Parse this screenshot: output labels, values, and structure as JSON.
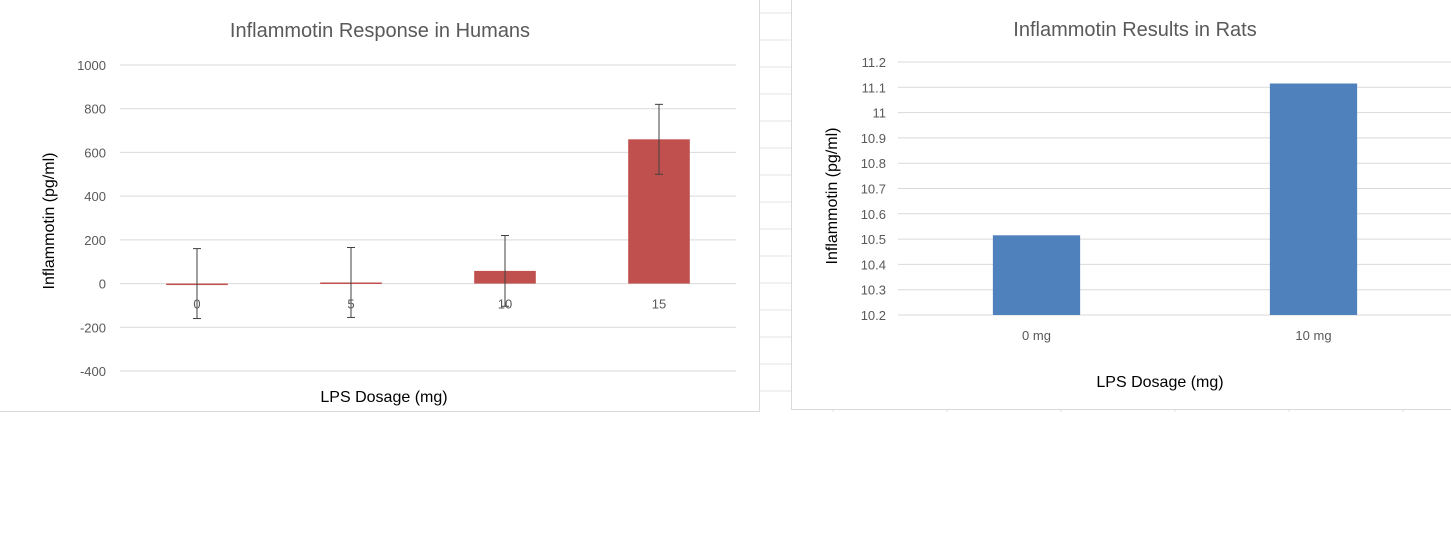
{
  "colors": {
    "humans_bar": "#c0504d",
    "rats_bar": "#4f81bd",
    "gridline": "#d9d9d9",
    "text": "#595959"
  },
  "chart_data": [
    {
      "type": "bar",
      "title": "Inflammotin Response in Humans",
      "xlabel": "LPS Dosage (mg)",
      "ylabel": "Inflammotin (pg/ml)",
      "categories": [
        "0",
        "5",
        "10",
        "15"
      ],
      "values": [
        0,
        5,
        58,
        660
      ],
      "error_bars": [
        160,
        160,
        162,
        160
      ],
      "ylim": [
        -400,
        1000
      ],
      "yticks": [
        1000,
        800,
        600,
        400,
        200,
        0,
        -200,
        -400
      ],
      "grid": true,
      "legend": "none"
    },
    {
      "type": "bar",
      "title": "Inflammotin Results in Rats",
      "xlabel": "LPS Dosage (mg)",
      "ylabel": "Inflammotin (pg/ml)",
      "categories": [
        "0 mg",
        "10 mg"
      ],
      "values": [
        10.515,
        11.115
      ],
      "ylim": [
        10.2,
        11.2
      ],
      "yticks": [
        "11.2",
        "11.1",
        "11",
        "10.9",
        "10.8",
        "10.7",
        "10.6",
        "10.5",
        "10.4",
        "10.3",
        "10.2"
      ],
      "grid": true,
      "legend": "none"
    }
  ]
}
